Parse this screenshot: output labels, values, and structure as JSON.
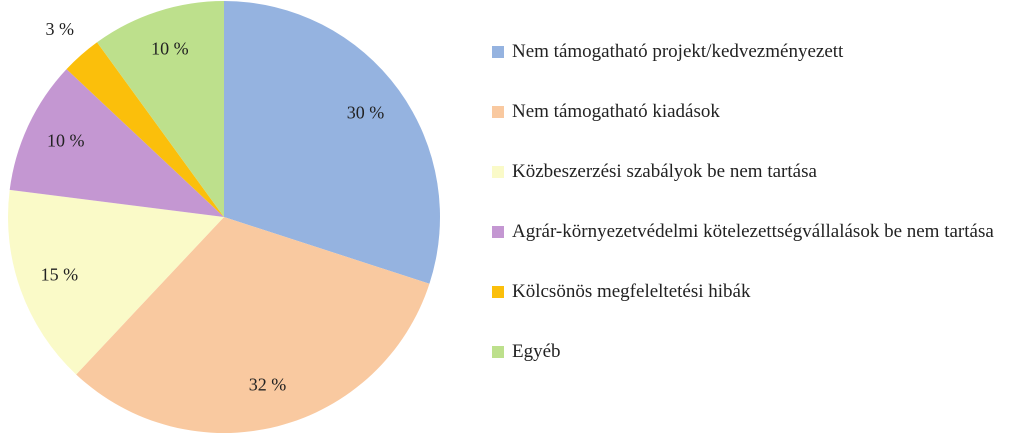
{
  "chart_data": {
    "type": "pie",
    "categories": [
      "Nem támogatható projekt/kedvezményezett",
      "Nem támogatható kiadások",
      "Közbeszerzési szabályok be nem tartása",
      "Agrár-környezetvédelmi kötelezettségvállalások be nem tartása",
      "Kölcsönös megfeleltetési hibák",
      "Egyéb"
    ],
    "values": [
      30,
      32,
      15,
      10,
      3,
      10
    ],
    "value_labels": [
      "30 %",
      "32 %",
      "15 %",
      "10 %",
      "3 %",
      "10 %"
    ],
    "colors": [
      "#95b3e0",
      "#f9c9a0",
      "#fafac8",
      "#c497d2",
      "#fbbf0b",
      "#bde08c"
    ],
    "legend": "right"
  }
}
